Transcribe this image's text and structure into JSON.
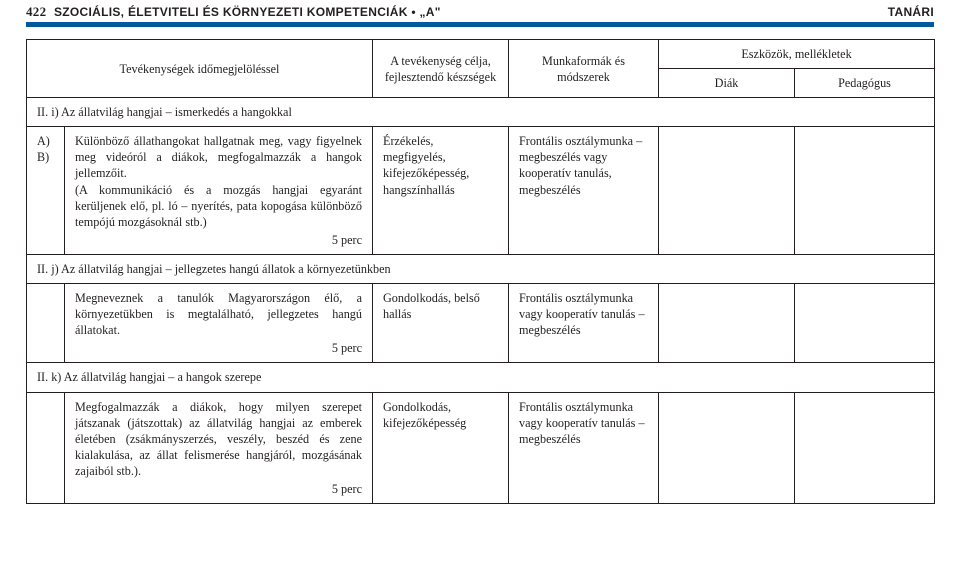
{
  "header": {
    "page_number": "422",
    "title_rest": "SZOCIÁLIS, ÉLETVITELI ÉS KÖRNYEZETI KOMPETENCIÁK • „A\"",
    "right": "TANÁRI"
  },
  "thead": {
    "activities": "Tevékenységek időmegjelöléssel",
    "goal": "A tevékenység célja, fejlesztendő készségek",
    "workforms": "Munkaformák és módszerek",
    "tools": "Eszközök, mellékletek",
    "student": "Diák",
    "teacher": "Pedagógus"
  },
  "sections": {
    "i": "II. i) Az állatvilág hangjai – ismerkedés a hangokkal",
    "j": "II. j) Az állatvilág hangjai – jellegzetes hangú állatok a környezetünkben",
    "k": "II. k) Az állatvilág hangjai – a hangok szerepe"
  },
  "row_i": {
    "ab": "A)\nB)",
    "activity": "Különböző állathangokat hallgatnak meg, vagy figyelnek meg videóról a diákok, megfogalmazzák a hangok jellemzőit.\n(A kommunikáció és a mozgás hangjai egyaránt kerüljenek elő, pl. ló – nyerítés, pata kopogása különböző tempójú mozgásoknál stb.)",
    "time": "5 perc",
    "goal": "Érzékelés, megfigyelés, kifejezőképesség, hangszínhallás",
    "work": "Frontális osztálymunka – megbeszélés vagy kooperatív tanulás, megbeszélés"
  },
  "row_j": {
    "activity": "Megneveznek a tanulók Magyarországon élő, a környezetükben is megtalálható, jellegzetes hangú állatokat.",
    "time": "5 perc",
    "goal": "Gondolkodás, belső hallás",
    "work": "Frontális osztálymunka vagy kooperatív tanulás – megbeszélés"
  },
  "row_k": {
    "activity": "Megfogalmazzák a diákok, hogy milyen szerepet játszanak (játszottak) az állatvilág hangjai az emberek életében (zsákmányszerzés, veszély, beszéd és zene kialakulása, az állat felismerése hangjáról, mozgásának zajaiból stb.).",
    "time": "5 perc",
    "goal": "Gondolkodás, kifejezőképesség",
    "work": "Frontális osztálymunka vagy kooperatív tanulás – megbeszélés"
  }
}
